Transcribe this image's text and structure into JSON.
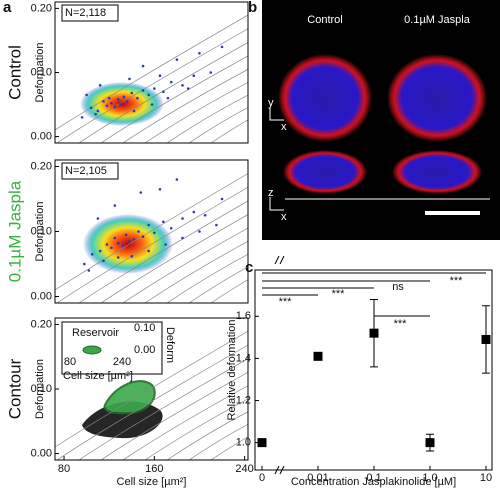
{
  "panel_labels": [
    "a",
    "b",
    "c"
  ],
  "chart_data": [
    {
      "type": "scatter",
      "row_label": "Control",
      "y_label": "Deformation",
      "annotation": "N=2,118",
      "color": "#2a3db0",
      "xlim": [
        72,
        243
      ],
      "ylim": [
        -0.01,
        0.21
      ],
      "yticks": [
        {
          "value": 0,
          "label": "0.00"
        },
        {
          "value": 0.1,
          "label": "0.10"
        },
        {
          "value": 0.2,
          "label": "0.20"
        }
      ],
      "x": [
        96,
        104,
        110,
        115,
        118,
        120,
        122,
        125,
        128,
        130,
        133,
        136,
        140,
        145,
        150,
        155,
        160,
        168,
        175,
        185,
        195,
        210,
        100,
        112,
        138,
        150,
        165,
        180,
        200,
        220,
        108,
        142,
        158,
        172,
        190
      ],
      "values": [
        0.03,
        0.045,
        0.04,
        0.055,
        0.048,
        0.06,
        0.052,
        0.046,
        0.058,
        0.05,
        0.062,
        0.055,
        0.068,
        0.06,
        0.072,
        0.065,
        0.075,
        0.07,
        0.085,
        0.08,
        0.095,
        0.1,
        0.065,
        0.08,
        0.09,
        0.11,
        0.095,
        0.12,
        0.13,
        0.14,
        0.035,
        0.04,
        0.05,
        0.06,
        0.075
      ]
    },
    {
      "type": "scatter",
      "row_label": "0.1µM Jaspla",
      "y_label": "Deformation",
      "annotation": "N=2,105",
      "color": "#2a3db0",
      "xlim": [
        72,
        243
      ],
      "ylim": [
        -0.01,
        0.21
      ],
      "yticks": [
        {
          "value": 0,
          "label": "0.00"
        },
        {
          "value": 0.1,
          "label": "0.10"
        },
        {
          "value": 0.2,
          "label": "0.20"
        }
      ],
      "x": [
        98,
        105,
        112,
        118,
        122,
        125,
        128,
        132,
        135,
        138,
        142,
        146,
        150,
        155,
        160,
        168,
        175,
        185,
        195,
        205,
        220,
        102,
        115,
        128,
        140,
        155,
        170,
        185,
        200,
        215,
        110,
        125,
        148,
        165,
        180
      ],
      "values": [
        0.05,
        0.065,
        0.07,
        0.08,
        0.075,
        0.09,
        0.082,
        0.078,
        0.095,
        0.085,
        0.088,
        0.1,
        0.092,
        0.11,
        0.098,
        0.115,
        0.105,
        0.12,
        0.13,
        0.125,
        0.15,
        0.04,
        0.055,
        0.06,
        0.062,
        0.07,
        0.08,
        0.09,
        0.1,
        0.11,
        0.12,
        0.14,
        0.16,
        0.165,
        0.18
      ]
    },
    {
      "type": "contour",
      "row_label": "Contour",
      "y_label": "Deformation",
      "x_label": "Cell size [µm²]",
      "xlim": [
        72,
        243
      ],
      "ylim": [
        -0.01,
        0.21
      ],
      "xticks": [
        80,
        160,
        240
      ],
      "yticks": [
        {
          "value": 0,
          "label": "0.00"
        },
        {
          "value": 0.1,
          "label": "0.10"
        },
        {
          "value": 0.2,
          "label": "0.20"
        }
      ],
      "inset": {
        "title": "Reservoir",
        "x_label": "Cell size [µm²]",
        "y_label": "Deform",
        "xticks": [
          80,
          240
        ],
        "yticks": [
          {
            "value": 0.1,
            "label": "0.10"
          },
          {
            "value": 0,
            "label": "0.00"
          }
        ]
      }
    },
    {
      "type": "errorbar",
      "x_label": "Concentration Jasplakinolide [µM]",
      "y_label": "Relative deformation",
      "categories": [
        "0",
        "0.01",
        "0.1",
        "1.0",
        "10"
      ],
      "values": [
        1.0,
        1.41,
        1.52,
        1.0,
        1.49
      ],
      "errors": [
        0.01,
        0.01,
        0.16,
        0.04,
        0.16
      ],
      "ylim": [
        0.87,
        1.82
      ],
      "yticks": [
        {
          "value": 1.0,
          "label": "1.0"
        },
        1.2,
        1.4,
        1.6
      ],
      "annotations": [
        "***",
        "***",
        "***",
        "ns",
        "***"
      ]
    }
  ],
  "images": {
    "columns": [
      "Control",
      "0.1µM Jaspla"
    ],
    "axes": [
      "y",
      "x",
      "z",
      "x"
    ]
  }
}
